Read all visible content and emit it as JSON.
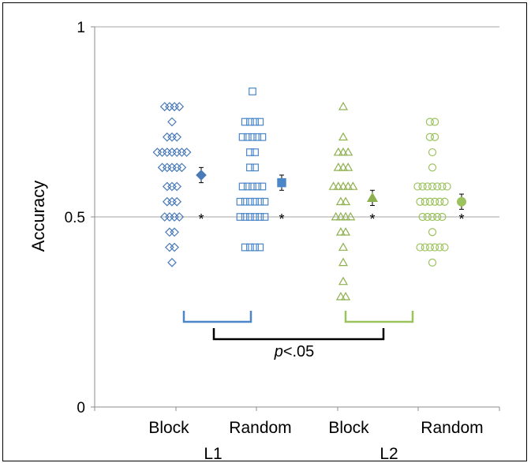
{
  "chart_data": {
    "type": "scatter",
    "title": "",
    "ylabel": "Accuracy",
    "ylim": [
      0,
      1
    ],
    "yticks": [
      "0",
      "0.5",
      "1"
    ],
    "categories": [
      "Block",
      "Random",
      "Block",
      "Random"
    ],
    "groups": [
      {
        "label": "L1",
        "categories": [
          0,
          1
        ]
      },
      {
        "label": "L2",
        "categories": [
          2,
          3
        ]
      }
    ],
    "grid": "horizontal-at-ticks",
    "series": [
      {
        "marker": "diamond",
        "color": "#4a7ab8",
        "points": [
          0.79,
          0.79,
          0.79,
          0.79,
          0.75,
          0.71,
          0.71,
          0.71,
          0.67,
          0.67,
          0.67,
          0.67,
          0.67,
          0.67,
          0.67,
          0.63,
          0.63,
          0.63,
          0.63,
          0.63,
          0.58,
          0.58,
          0.58,
          0.54,
          0.54,
          0.54,
          0.5,
          0.5,
          0.5,
          0.5,
          0.46,
          0.46,
          0.42,
          0.42,
          0.38
        ],
        "mean": 0.61,
        "error": 0.02,
        "significance": "*"
      },
      {
        "marker": "square",
        "color": "#4a86c8",
        "points": [
          0.83,
          0.75,
          0.75,
          0.75,
          0.75,
          0.71,
          0.71,
          0.71,
          0.71,
          0.71,
          0.67,
          0.67,
          0.63,
          0.63,
          0.58,
          0.58,
          0.58,
          0.58,
          0.58,
          0.54,
          0.54,
          0.54,
          0.54,
          0.54,
          0.54,
          0.5,
          0.5,
          0.5,
          0.5,
          0.5,
          0.5,
          0.42,
          0.42,
          0.42,
          0.42
        ],
        "mean": 0.59,
        "error": 0.02,
        "significance": "*"
      },
      {
        "marker": "triangle",
        "color": "#8db04e",
        "points": [
          0.79,
          0.71,
          0.67,
          0.67,
          0.67,
          0.63,
          0.63,
          0.63,
          0.58,
          0.58,
          0.58,
          0.58,
          0.58,
          0.54,
          0.54,
          0.5,
          0.5,
          0.5,
          0.5,
          0.46,
          0.46,
          0.42,
          0.38,
          0.33,
          0.29,
          0.29
        ],
        "mean": 0.55,
        "error": 0.02,
        "significance": "*"
      },
      {
        "marker": "circle",
        "color": "#9bc25c",
        "points": [
          0.75,
          0.75,
          0.71,
          0.71,
          0.67,
          0.63,
          0.58,
          0.58,
          0.58,
          0.58,
          0.58,
          0.58,
          0.58,
          0.54,
          0.54,
          0.54,
          0.54,
          0.54,
          0.54,
          0.5,
          0.5,
          0.5,
          0.5,
          0.5,
          0.46,
          0.42,
          0.42,
          0.42,
          0.42,
          0.42,
          0.42,
          0.38
        ],
        "mean": 0.54,
        "error": 0.02,
        "significance": "*"
      }
    ],
    "annotations": {
      "comparison_label_italic": "p",
      "comparison_label_rest": "<.05",
      "bracket_colors": {
        "L1": "#4a86c8",
        "L2": "#9bc25c",
        "between": "#000000"
      }
    }
  }
}
